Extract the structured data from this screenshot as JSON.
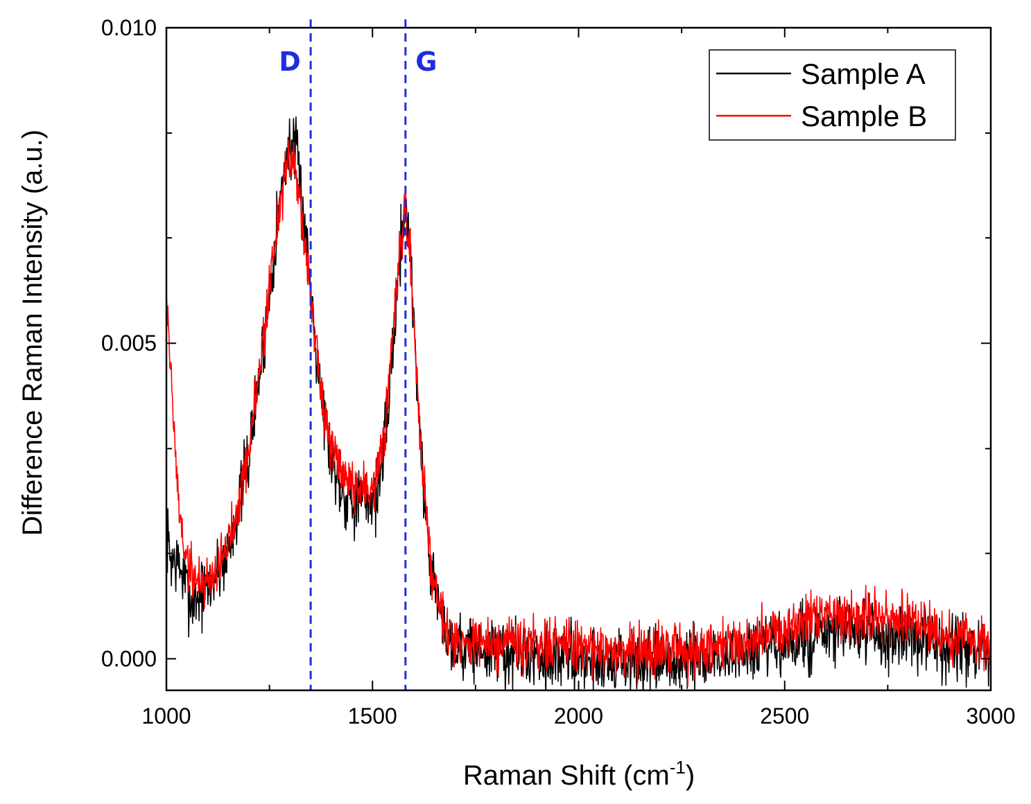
{
  "chart_data": {
    "type": "line",
    "title": "",
    "xlabel_main": "Raman Shift (cm",
    "xlabel_sup": "-1",
    "xlabel_end": ")",
    "ylabel": "Difference Raman Intensity (a.u.)",
    "xlim": [
      1000,
      3000
    ],
    "ylim": [
      -0.0005,
      0.01
    ],
    "x_ticks": [
      1000,
      1500,
      2000,
      2500,
      3000
    ],
    "x_tick_labels": [
      "1000",
      "1500",
      "2000",
      "2500",
      "3000"
    ],
    "y_ticks": [
      0.0,
      0.005,
      0.01
    ],
    "y_tick_labels": [
      "0.000",
      "0.005",
      "0.010"
    ],
    "y_minor_step": 0.00167,
    "x_minor_step": 250,
    "grid": false,
    "legend_position": "top-right",
    "series": [
      {
        "name": "Sample A",
        "color": "#000000",
        "noise": 0.00033,
        "seed": 7,
        "keypoints": [
          [
            1000,
            0.002
          ],
          [
            1010,
            0.0016
          ],
          [
            1030,
            0.0015
          ],
          [
            1060,
            0.0009
          ],
          [
            1100,
            0.0011
          ],
          [
            1150,
            0.0017
          ],
          [
            1200,
            0.0032
          ],
          [
            1240,
            0.0052
          ],
          [
            1270,
            0.007
          ],
          [
            1290,
            0.0079
          ],
          [
            1305,
            0.0082
          ],
          [
            1320,
            0.0078
          ],
          [
            1340,
            0.0066
          ],
          [
            1360,
            0.0052
          ],
          [
            1380,
            0.004
          ],
          [
            1400,
            0.0032
          ],
          [
            1430,
            0.0026
          ],
          [
            1460,
            0.0025
          ],
          [
            1490,
            0.0025
          ],
          [
            1510,
            0.0026
          ],
          [
            1530,
            0.0034
          ],
          [
            1550,
            0.005
          ],
          [
            1570,
            0.0067
          ],
          [
            1580,
            0.0072
          ],
          [
            1590,
            0.0066
          ],
          [
            1605,
            0.0048
          ],
          [
            1620,
            0.003
          ],
          [
            1640,
            0.0015
          ],
          [
            1670,
            0.0006
          ],
          [
            1700,
            0.0002
          ],
          [
            1800,
            0.0001
          ],
          [
            2000,
            0.0
          ],
          [
            2200,
            -0.0001
          ],
          [
            2300,
            0.0
          ],
          [
            2400,
            0.0001
          ],
          [
            2500,
            0.0002
          ],
          [
            2600,
            0.0004
          ],
          [
            2700,
            0.0004
          ],
          [
            2800,
            0.0003
          ],
          [
            2900,
            0.0002
          ],
          [
            3000,
            0.0
          ]
        ]
      },
      {
        "name": "Sample B",
        "color": "#ff0000",
        "noise": 0.00026,
        "seed": 19,
        "keypoints": [
          [
            1000,
            0.0059
          ],
          [
            1015,
            0.004
          ],
          [
            1030,
            0.0024
          ],
          [
            1050,
            0.0015
          ],
          [
            1080,
            0.0012
          ],
          [
            1110,
            0.0013
          ],
          [
            1150,
            0.0018
          ],
          [
            1200,
            0.0033
          ],
          [
            1240,
            0.0053
          ],
          [
            1270,
            0.007
          ],
          [
            1290,
            0.0077
          ],
          [
            1305,
            0.0079
          ],
          [
            1320,
            0.0075
          ],
          [
            1340,
            0.0064
          ],
          [
            1360,
            0.0051
          ],
          [
            1380,
            0.004
          ],
          [
            1400,
            0.0033
          ],
          [
            1430,
            0.0028
          ],
          [
            1460,
            0.0027
          ],
          [
            1490,
            0.0027
          ],
          [
            1510,
            0.0028
          ],
          [
            1530,
            0.0036
          ],
          [
            1550,
            0.0051
          ],
          [
            1570,
            0.0066
          ],
          [
            1580,
            0.007
          ],
          [
            1590,
            0.0065
          ],
          [
            1605,
            0.0048
          ],
          [
            1620,
            0.0031
          ],
          [
            1640,
            0.0016
          ],
          [
            1670,
            0.0007
          ],
          [
            1700,
            0.0003
          ],
          [
            1800,
            0.0002
          ],
          [
            2000,
            0.0002
          ],
          [
            2200,
            0.0001
          ],
          [
            2300,
            0.0002
          ],
          [
            2400,
            0.0003
          ],
          [
            2500,
            0.0005
          ],
          [
            2600,
            0.0007
          ],
          [
            2700,
            0.0007
          ],
          [
            2800,
            0.0006
          ],
          [
            2900,
            0.0004
          ],
          [
            3000,
            0.0002
          ]
        ]
      }
    ],
    "annotations": [
      {
        "label": "D",
        "x": 1350,
        "color": "#1f2de0",
        "style": "dashed",
        "label_side": "left"
      },
      {
        "label": "G",
        "x": 1580,
        "color": "#1f2de0",
        "style": "dashed",
        "label_side": "right"
      }
    ]
  }
}
